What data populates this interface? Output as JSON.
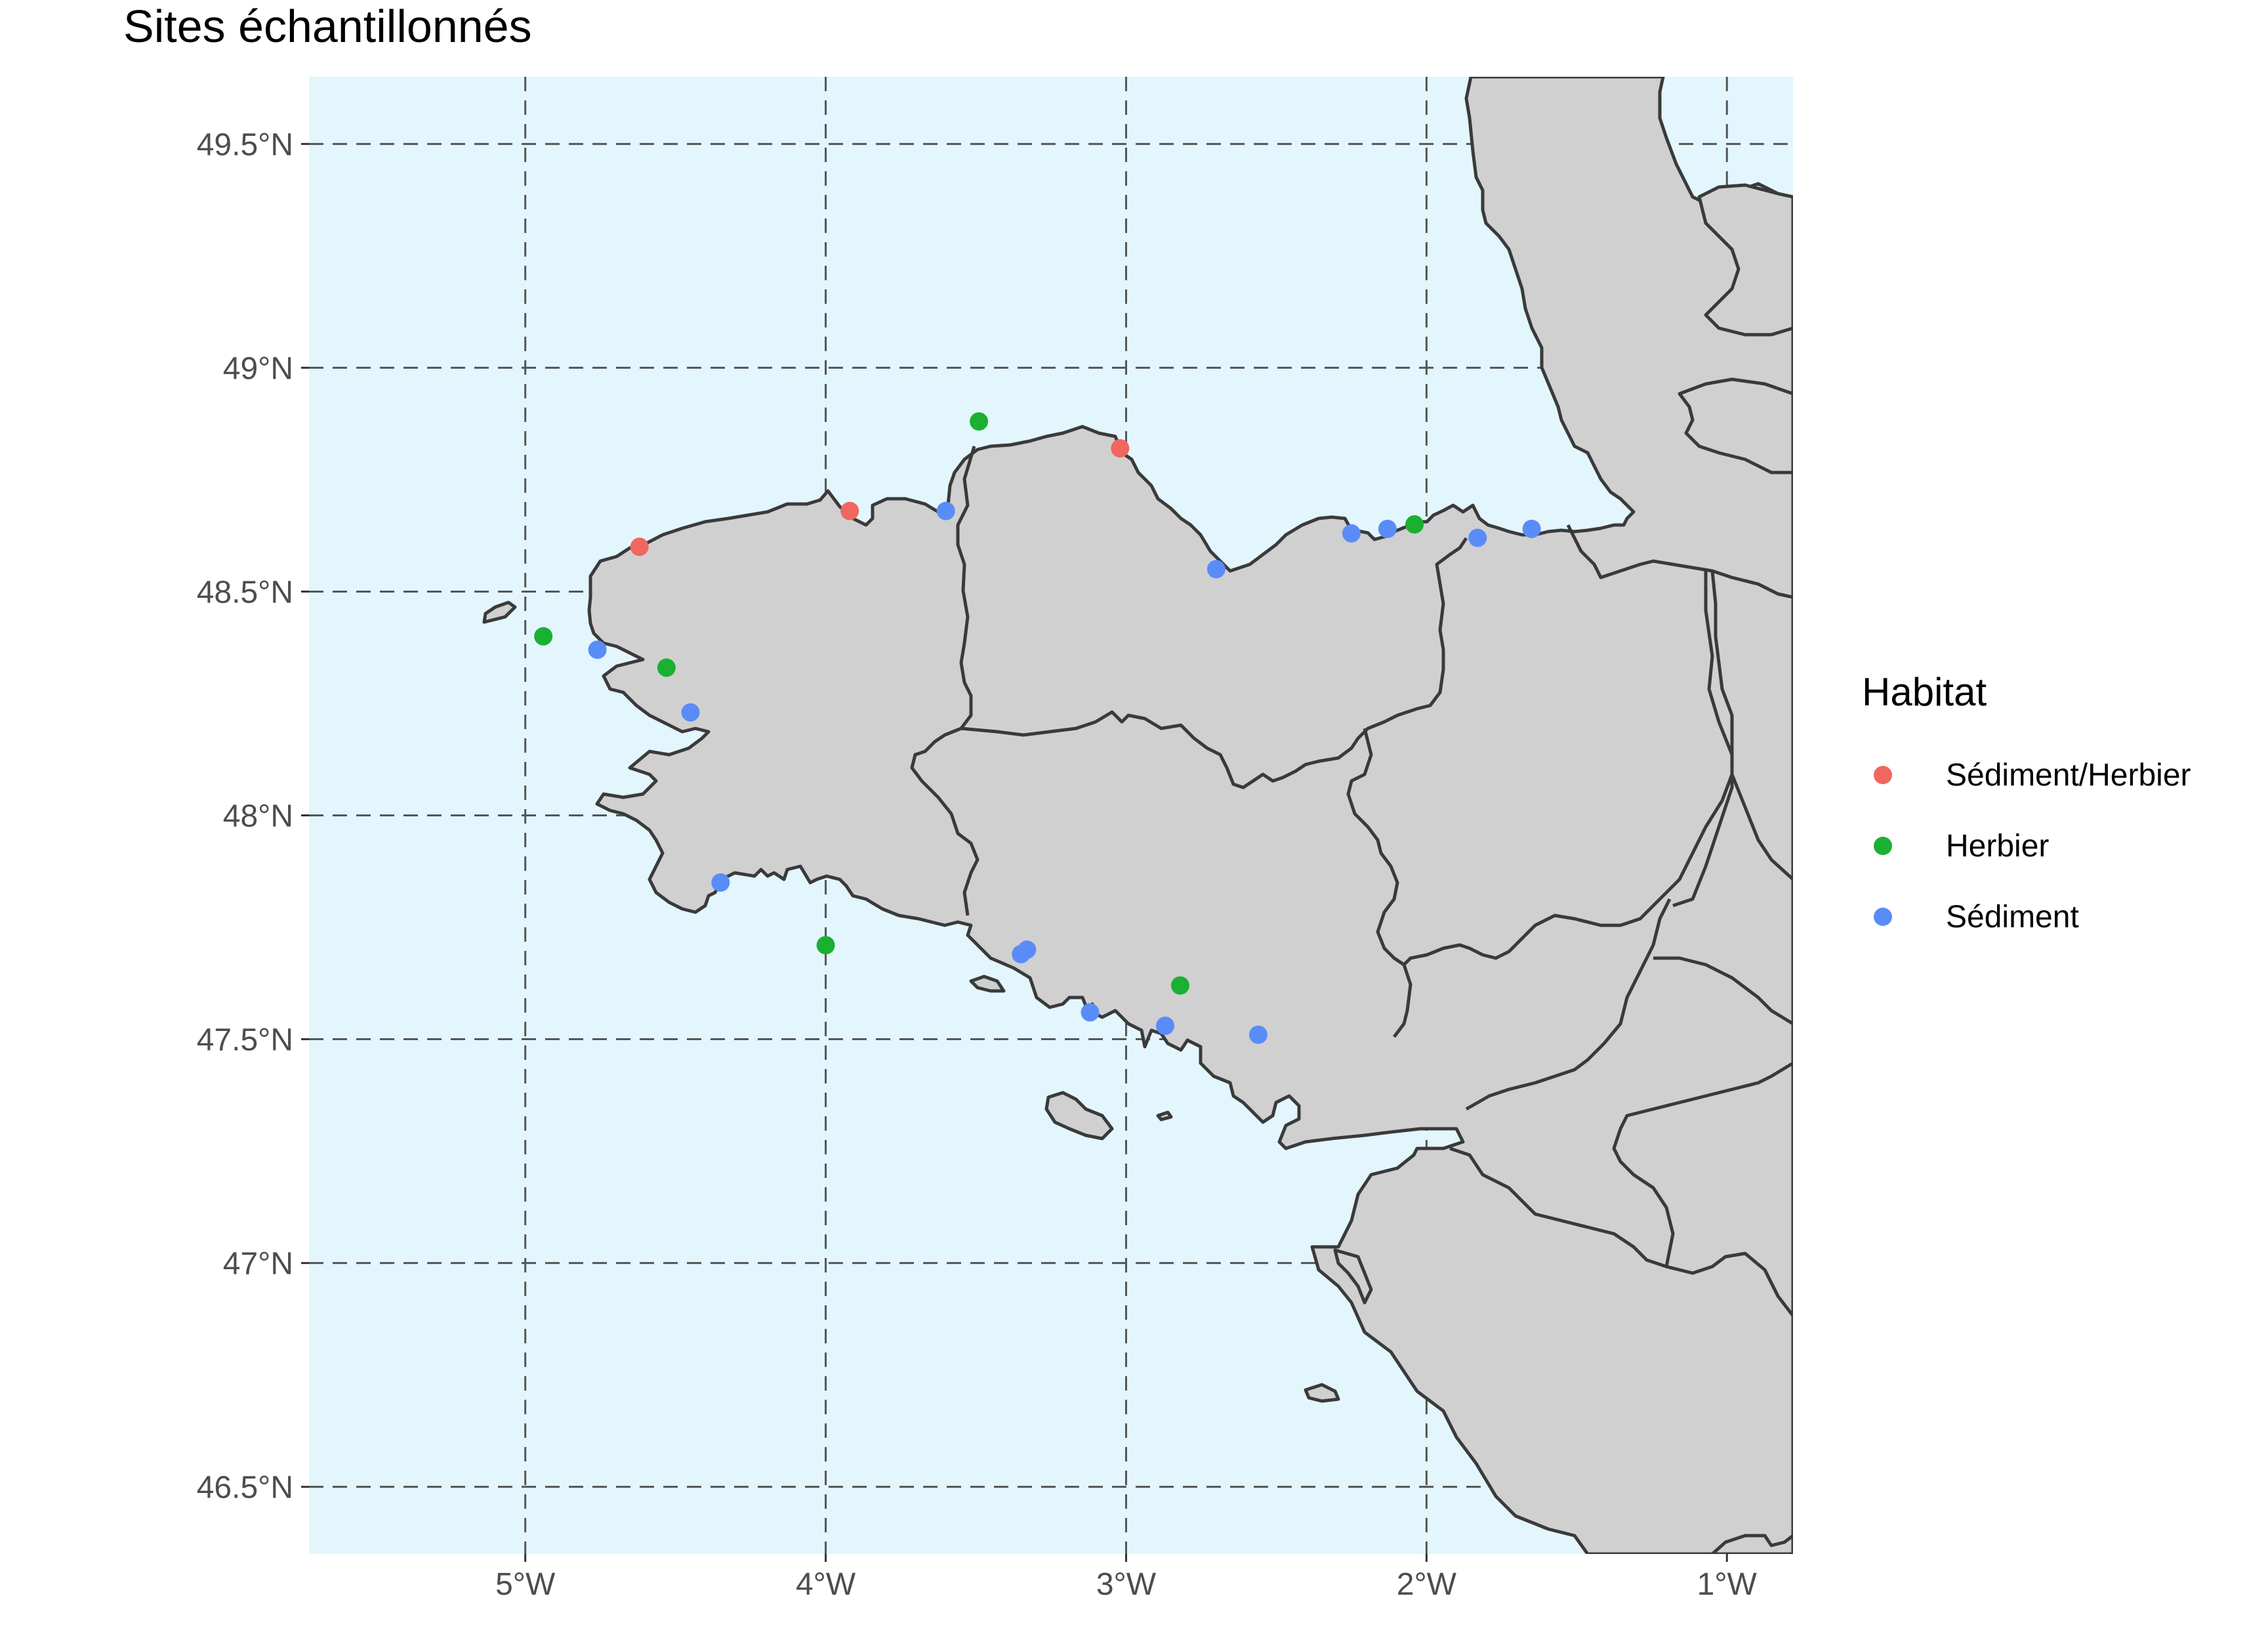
{
  "title": "Sites échantillonnés",
  "colors": {
    "sea": "#e3f6fd",
    "land": "#d0d0d0",
    "outline": "#3a3a3a",
    "Sédiment/Herbier": "#f0675f",
    "Herbier": "#1ab032",
    "Sédiment": "#5a8cf8"
  },
  "axes": {
    "lon_range": [
      -5.72,
      -0.78
    ],
    "lat_range": [
      46.35,
      49.65
    ],
    "x_ticks": [
      {
        "value": -5,
        "label": "5°W"
      },
      {
        "value": -4,
        "label": "4°W"
      },
      {
        "value": -3,
        "label": "3°W"
      },
      {
        "value": -2,
        "label": "2°W"
      },
      {
        "value": -1,
        "label": "1°W"
      }
    ],
    "y_ticks": [
      {
        "value": 49.5,
        "label": "49.5°N"
      },
      {
        "value": 49.0,
        "label": "49°N"
      },
      {
        "value": 48.5,
        "label": "48.5°N"
      },
      {
        "value": 48.0,
        "label": "48°N"
      },
      {
        "value": 47.5,
        "label": "47.5°N"
      },
      {
        "value": 47.0,
        "label": "47°N"
      },
      {
        "value": 46.5,
        "label": "46.5°N"
      }
    ],
    "grid": "dashed"
  },
  "legend": {
    "title": "Habitat",
    "items": [
      {
        "label": "Sédiment/Herbier",
        "color": "#f0675f"
      },
      {
        "label": "Herbier",
        "color": "#1ab032"
      },
      {
        "label": "Sédiment",
        "color": "#5a8cf8"
      }
    ]
  },
  "sites": [
    {
      "lon": -4.62,
      "lat": 48.6,
      "habitat": "Sédiment/Herbier"
    },
    {
      "lon": -3.92,
      "lat": 48.68,
      "habitat": "Sédiment/Herbier"
    },
    {
      "lon": -3.02,
      "lat": 48.82,
      "habitat": "Sédiment/Herbier"
    },
    {
      "lon": -3.49,
      "lat": 48.88,
      "habitat": "Herbier"
    },
    {
      "lon": -4.94,
      "lat": 48.4,
      "habitat": "Herbier"
    },
    {
      "lon": -4.53,
      "lat": 48.33,
      "habitat": "Herbier"
    },
    {
      "lon": -4.0,
      "lat": 47.71,
      "habitat": "Herbier"
    },
    {
      "lon": -2.82,
      "lat": 47.62,
      "habitat": "Herbier"
    },
    {
      "lon": -2.04,
      "lat": 48.65,
      "habitat": "Herbier"
    },
    {
      "lon": -3.6,
      "lat": 48.68,
      "habitat": "Sédiment"
    },
    {
      "lon": -2.7,
      "lat": 48.55,
      "habitat": "Sédiment"
    },
    {
      "lon": -2.25,
      "lat": 48.63,
      "habitat": "Sédiment"
    },
    {
      "lon": -2.13,
      "lat": 48.64,
      "habitat": "Sédiment"
    },
    {
      "lon": -1.83,
      "lat": 48.62,
      "habitat": "Sédiment"
    },
    {
      "lon": -1.65,
      "lat": 48.64,
      "habitat": "Sédiment"
    },
    {
      "lon": -4.76,
      "lat": 48.37,
      "habitat": "Sédiment"
    },
    {
      "lon": -4.45,
      "lat": 48.23,
      "habitat": "Sédiment"
    },
    {
      "lon": -4.35,
      "lat": 47.85,
      "habitat": "Sédiment"
    },
    {
      "lon": -3.35,
      "lat": 47.69,
      "habitat": "Sédiment"
    },
    {
      "lon": -3.33,
      "lat": 47.7,
      "habitat": "Sédiment"
    },
    {
      "lon": -3.12,
      "lat": 47.56,
      "habitat": "Sédiment"
    },
    {
      "lon": -2.87,
      "lat": 47.53,
      "habitat": "Sédiment"
    },
    {
      "lon": -2.56,
      "lat": 47.51,
      "habitat": "Sédiment"
    }
  ]
}
